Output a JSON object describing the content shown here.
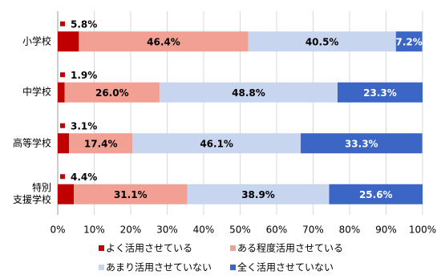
{
  "chart_data": {
    "type": "stacked_bar_horizontal",
    "categories": [
      "小学校",
      "中学校",
      "高等学校",
      "特別\n支援学校"
    ],
    "series": [
      {
        "name": "よく活用させている",
        "color": "#c00000",
        "values": [
          5.8,
          1.9,
          3.1,
          4.4
        ],
        "value_labels": [
          "5.8%",
          "1.9%",
          "3.1%",
          "4.4%"
        ]
      },
      {
        "name": "ある程度活用させている",
        "color": "#f2a093",
        "values": [
          46.4,
          26.0,
          17.4,
          31.1
        ],
        "value_labels": [
          "46.4%",
          "26.0%",
          "17.4%",
          "31.1%"
        ]
      },
      {
        "name": "あまり活用させていない",
        "color": "#c7d5ee",
        "values": [
          40.5,
          48.8,
          46.1,
          38.9
        ],
        "value_labels": [
          "40.5%",
          "48.8%",
          "46.1%",
          "38.9%"
        ]
      },
      {
        "name": "全く活用させていない",
        "color": "#3b66c5",
        "values": [
          7.2,
          23.3,
          33.3,
          25.6
        ],
        "value_labels": [
          "7.2%",
          "23.3%",
          "33.3%",
          "25.6%"
        ]
      }
    ],
    "xlim": [
      0,
      100
    ],
    "xticks": [
      {
        "value": 0,
        "label": "0%"
      },
      {
        "value": 10,
        "label": "10%"
      },
      {
        "value": 20,
        "label": "20%"
      },
      {
        "value": 30,
        "label": "30%"
      },
      {
        "value": 40,
        "label": "40%"
      },
      {
        "value": 50,
        "label": "50%"
      },
      {
        "value": 60,
        "label": "60%"
      },
      {
        "value": 70,
        "label": "70%"
      },
      {
        "value": 80,
        "label": "80%"
      },
      {
        "value": 90,
        "label": "90%"
      },
      {
        "value": 100,
        "label": "100%"
      }
    ],
    "grid": true
  }
}
